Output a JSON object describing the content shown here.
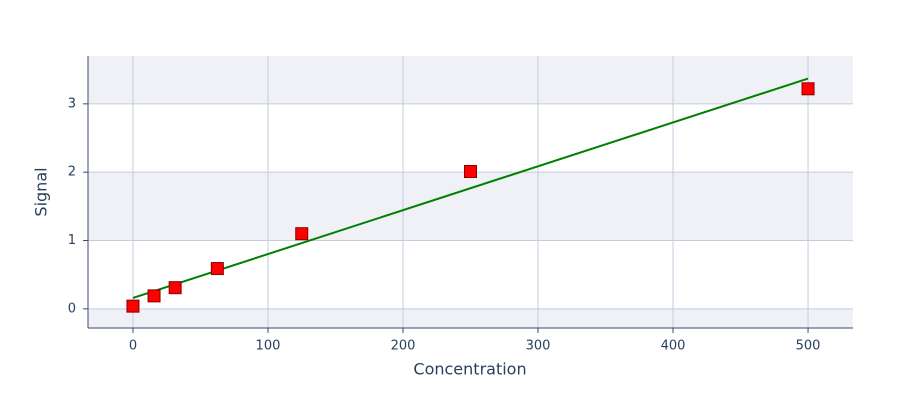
{
  "chart_data": {
    "type": "scatter",
    "x_label": "Concentration",
    "y_label": "Signal",
    "xlim": [
      -33.3,
      533.3
    ],
    "xticks": [
      0,
      100,
      200,
      300,
      400,
      500
    ],
    "ylim": [
      -0.28,
      3.7
    ],
    "yticks": [
      0,
      1,
      2,
      3
    ],
    "grid": true,
    "series": [
      {
        "type": "scatter",
        "color": "#ff0000",
        "x": [
          0,
          15.625,
          31.25,
          62.5,
          125,
          250,
          500
        ],
        "values": [
          0.04,
          0.19,
          0.31,
          0.59,
          1.1,
          2.01,
          3.22
        ]
      },
      {
        "type": "line",
        "color": "#008000",
        "x": [
          0,
          500
        ],
        "values": [
          0.16,
          3.37
        ]
      }
    ]
  }
}
